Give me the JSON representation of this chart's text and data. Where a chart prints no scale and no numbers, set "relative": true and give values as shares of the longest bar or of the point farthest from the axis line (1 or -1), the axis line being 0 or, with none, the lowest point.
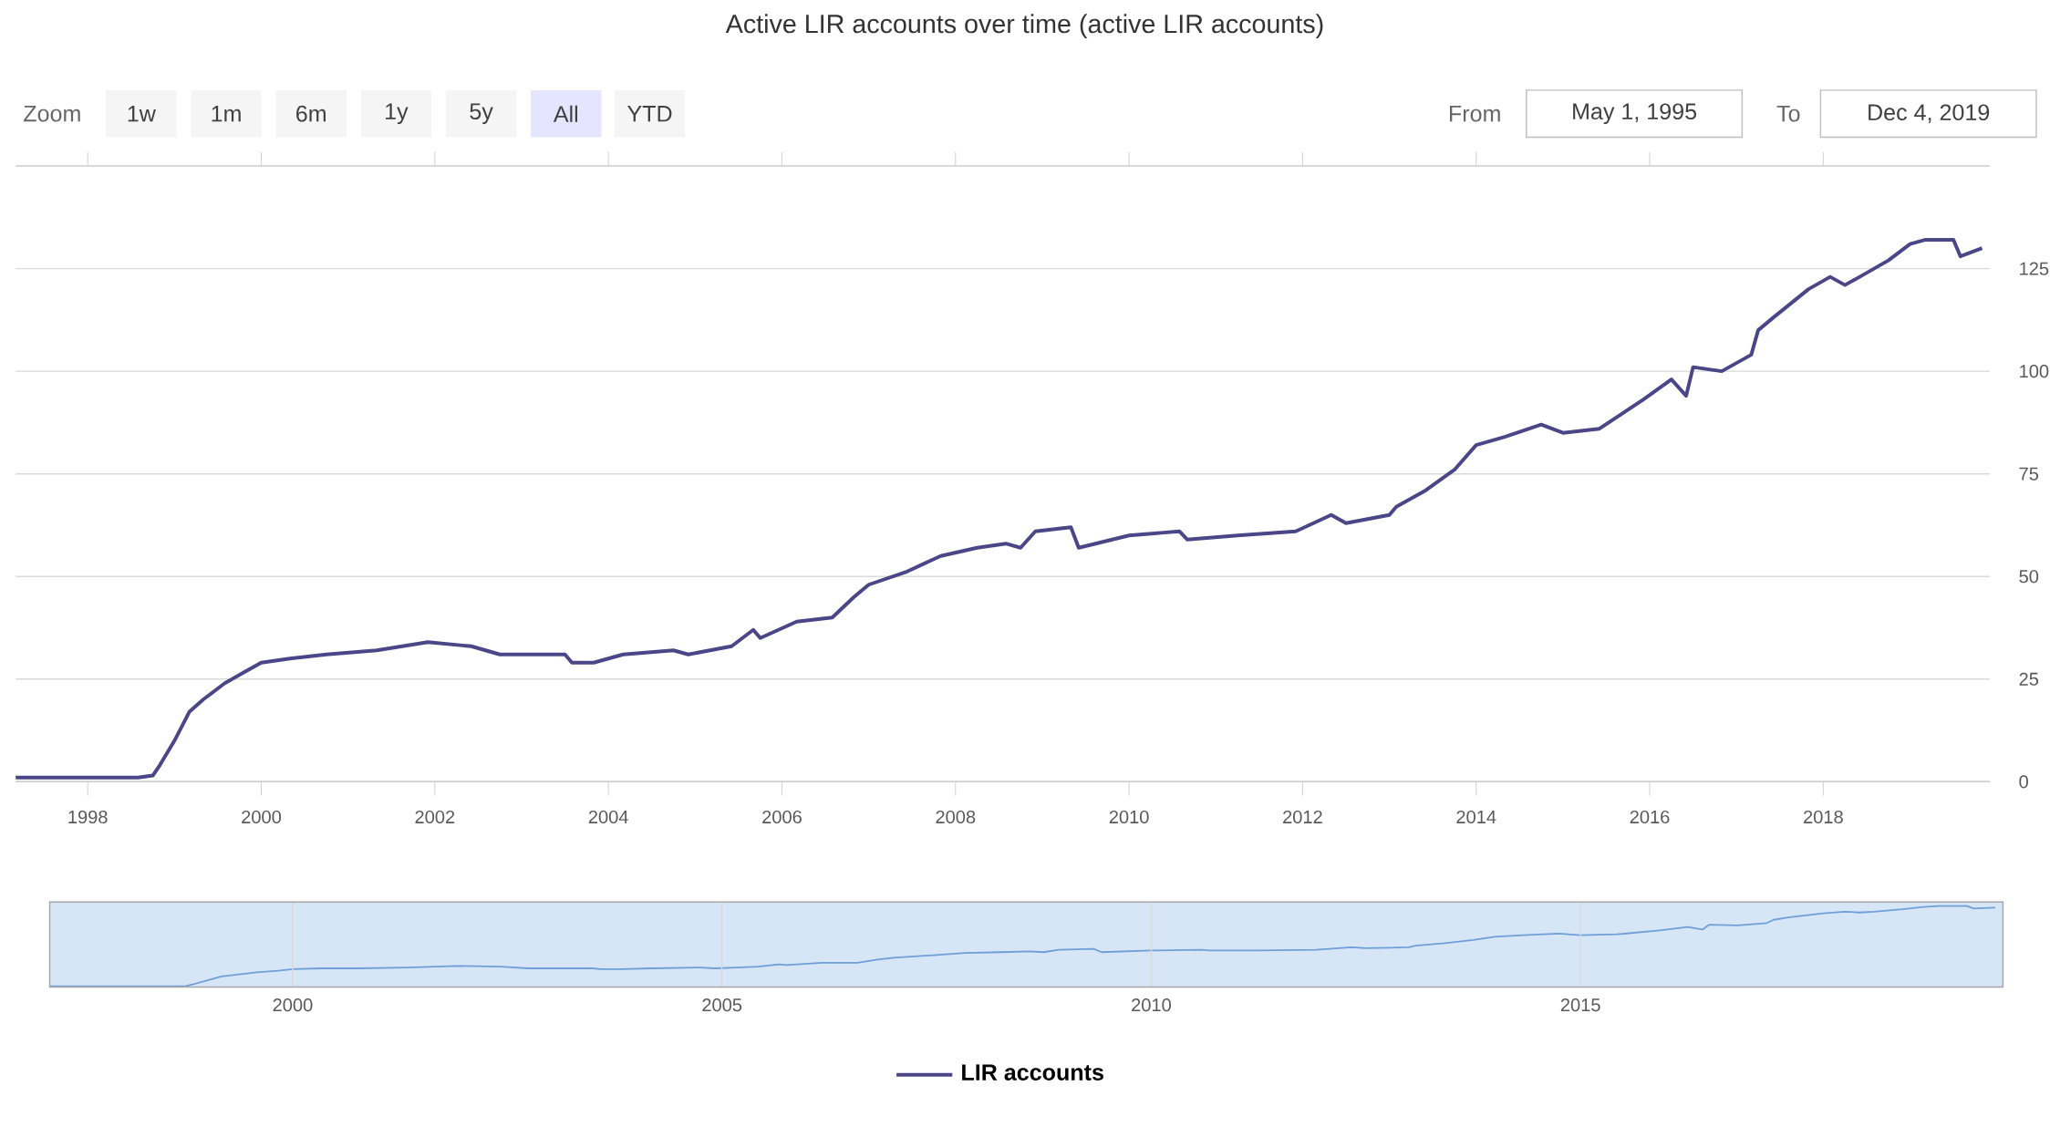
{
  "chart_data": [
    {
      "type": "line",
      "title": "Active LIR accounts over time (active LIR accounts)",
      "annotations": [
        "Zoom",
        "1w",
        "1m",
        "6m",
        "1y",
        "5y",
        "All",
        "YTD",
        "From",
        "May 1, 1995",
        "To",
        "Dec 4, 2019"
      ],
      "x": [
        "1997-03",
        "1998-08",
        "1998-10",
        "1998-11",
        "1999-01",
        "1999-03",
        "1999-05",
        "1999-08",
        "1999-11",
        "2000-01",
        "2000-05",
        "2000-10",
        "2001-05",
        "2001-12",
        "2002-06",
        "2002-10",
        "2003-07",
        "2003-08",
        "2003-11",
        "2004-03",
        "2004-10",
        "2004-12",
        "2005-03",
        "2005-06",
        "2005-09",
        "2005-10",
        "2006-03",
        "2006-08",
        "2006-11",
        "2007-01",
        "2007-06",
        "2007-11",
        "2008-04",
        "2008-08",
        "2008-10",
        "2008-12",
        "2009-05",
        "2009-06",
        "2010-01",
        "2010-08",
        "2010-09",
        "2011-04",
        "2011-12",
        "2012-05",
        "2012-07",
        "2013-01",
        "2013-02",
        "2013-06",
        "2013-10",
        "2014-01",
        "2014-05",
        "2014-10",
        "2015-01",
        "2015-06",
        "2015-12",
        "2016-04",
        "2016-06",
        "2016-07",
        "2016-11",
        "2017-03",
        "2017-04",
        "2017-06",
        "2017-11",
        "2018-02",
        "2018-04",
        "2018-06",
        "2018-10",
        "2019-01",
        "2019-03",
        "2019-07",
        "2019-08",
        "2019-11"
      ],
      "series": [
        {
          "name": "LIR accounts",
          "color": "#4a4688",
          "values": [
            1,
            1,
            1.5,
            4,
            10,
            17,
            20,
            24,
            27,
            29,
            30,
            31,
            32,
            34,
            33,
            31,
            31,
            29,
            29,
            31,
            32,
            31,
            32,
            33,
            37,
            35,
            39,
            40,
            45,
            48,
            51,
            55,
            57,
            58,
            57,
            61,
            62,
            57,
            60,
            61,
            59,
            60,
            61,
            65,
            63,
            65,
            67,
            71,
            76,
            82,
            84,
            87,
            85,
            86,
            93,
            98,
            94,
            101,
            100,
            104,
            110,
            113,
            120,
            123,
            121,
            123,
            127,
            131,
            132,
            132,
            128,
            130
          ]
        }
      ],
      "xlim": [
        "1997-03",
        "2019-12"
      ],
      "ylim": [
        0,
        150
      ],
      "xticks": [
        "1998",
        "2000",
        "2002",
        "2004",
        "2006",
        "2008",
        "2010",
        "2012",
        "2014",
        "2016",
        "2018"
      ],
      "yticks": [
        0,
        25,
        50,
        75,
        100,
        125
      ],
      "grid": "y",
      "legend": "bottom"
    },
    {
      "type": "line",
      "x": [
        "1997-03",
        "1998-08",
        "1998-10",
        "1998-11",
        "1999-01",
        "1999-03",
        "1999-05",
        "1999-08",
        "1999-11",
        "2000-01",
        "2000-05",
        "2000-10",
        "2001-05",
        "2001-12",
        "2002-06",
        "2002-10",
        "2003-07",
        "2003-08",
        "2003-11",
        "2004-03",
        "2004-10",
        "2004-12",
        "2005-03",
        "2005-06",
        "2005-09",
        "2005-10",
        "2006-03",
        "2006-08",
        "2006-11",
        "2007-01",
        "2007-06",
        "2007-11",
        "2008-04",
        "2008-08",
        "2008-10",
        "2008-12",
        "2009-05",
        "2009-06",
        "2010-01",
        "2010-08",
        "2010-09",
        "2011-04",
        "2011-12",
        "2012-05",
        "2012-07",
        "2013-01",
        "2013-02",
        "2013-06",
        "2013-10",
        "2014-01",
        "2014-05",
        "2014-10",
        "2015-01",
        "2015-06",
        "2015-12",
        "2016-04",
        "2016-06",
        "2016-07",
        "2016-11",
        "2017-03",
        "2017-04",
        "2017-06",
        "2017-11",
        "2018-02",
        "2018-04",
        "2018-06",
        "2018-10",
        "2019-01",
        "2019-03",
        "2019-07",
        "2019-08",
        "2019-11"
      ],
      "series": [
        {
          "color": "#6f9fd8",
          "values": [
            0.01,
            0.01,
            0.01,
            0.03,
            0.08,
            0.13,
            0.15,
            0.18,
            0.2,
            0.22,
            0.23,
            0.23,
            0.24,
            0.26,
            0.25,
            0.23,
            0.23,
            0.22,
            0.22,
            0.23,
            0.24,
            0.23,
            0.24,
            0.25,
            0.28,
            0.27,
            0.3,
            0.3,
            0.34,
            0.36,
            0.39,
            0.42,
            0.43,
            0.44,
            0.43,
            0.46,
            0.47,
            0.43,
            0.45,
            0.46,
            0.45,
            0.45,
            0.46,
            0.49,
            0.48,
            0.49,
            0.51,
            0.54,
            0.58,
            0.62,
            0.64,
            0.66,
            0.64,
            0.65,
            0.7,
            0.74,
            0.71,
            0.77,
            0.76,
            0.79,
            0.83,
            0.86,
            0.91,
            0.93,
            0.92,
            0.93,
            0.96,
            0.99,
            1,
            1,
            0.97,
            0.98
          ]
        }
      ],
      "relative": true,
      "xlim": [
        "1997-03",
        "2019-12"
      ],
      "xticks": [
        "2000",
        "2005",
        "2010",
        "2015"
      ],
      "grid": "x",
      "bands": [
        {
          "axis": "x",
          "from": "1997-03",
          "to": "2019-12",
          "color": "#d6e6f7"
        }
      ]
    }
  ]
}
